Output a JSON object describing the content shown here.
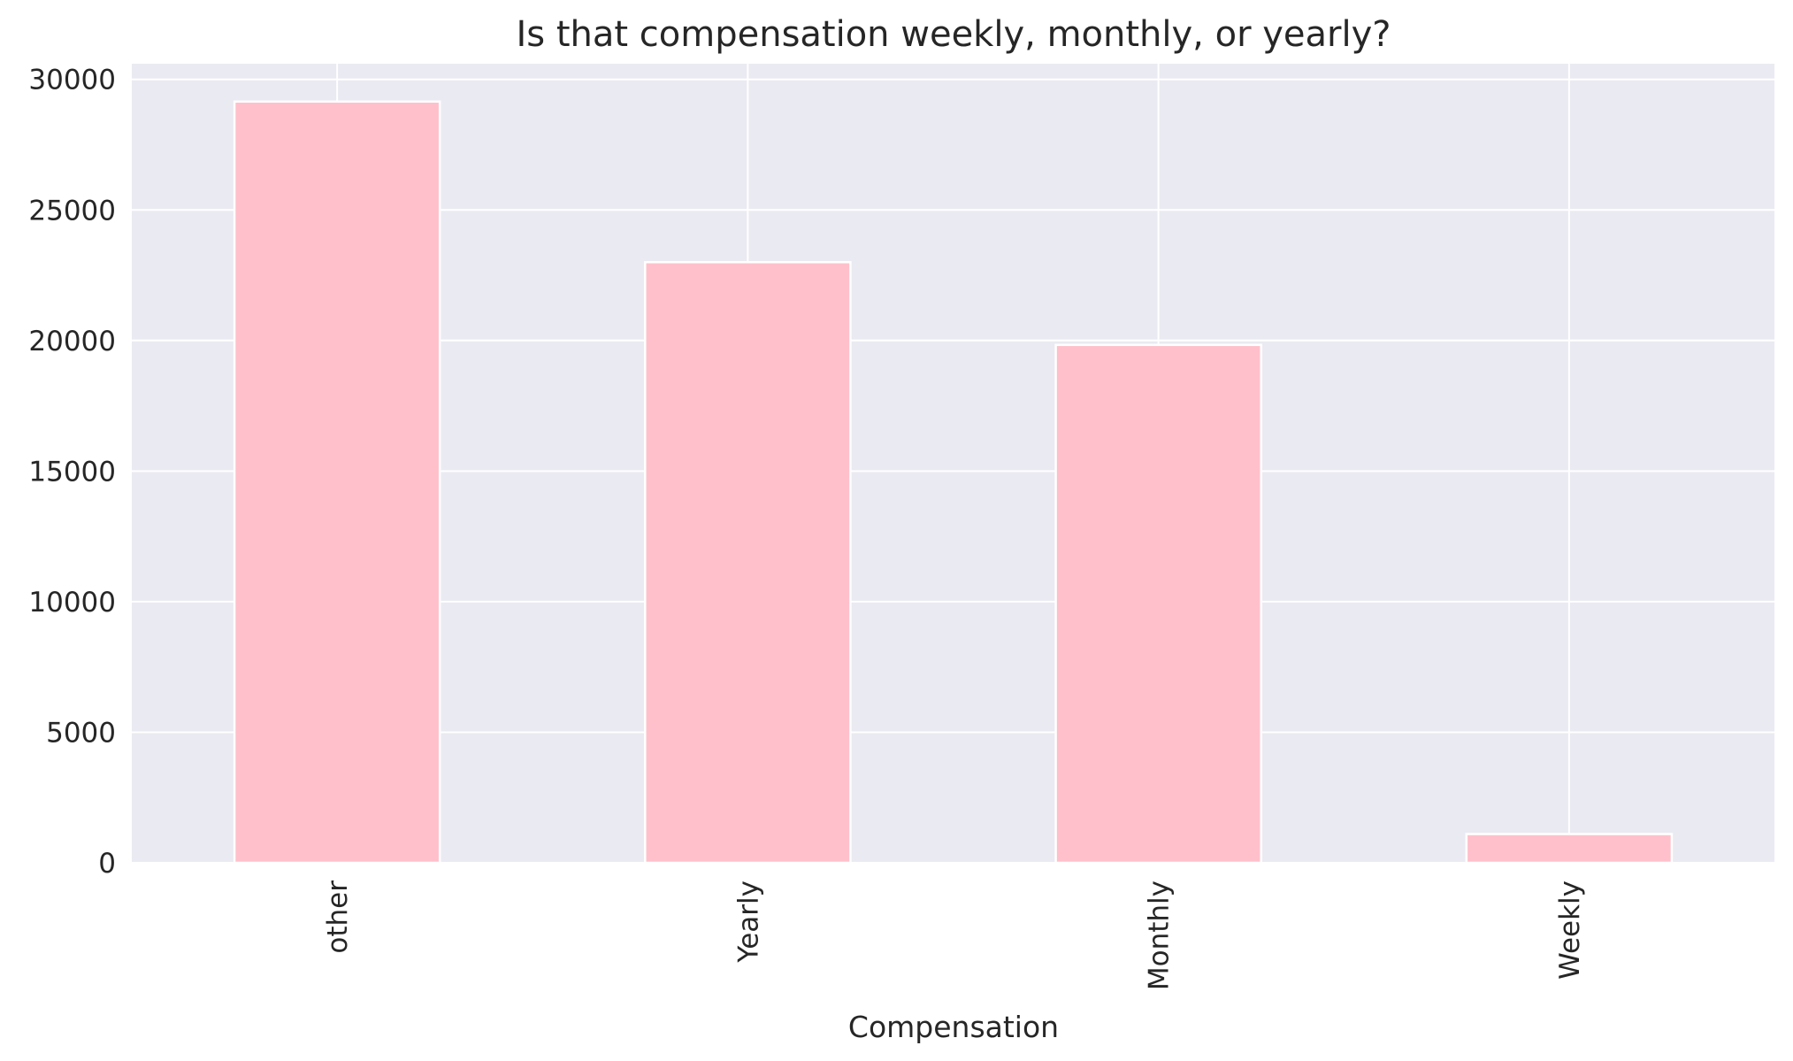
{
  "chart_data": {
    "type": "bar",
    "title": "Is that compensation weekly, monthly, or yearly?",
    "xlabel": "Compensation",
    "ylabel": "",
    "categories": [
      "other",
      "Yearly",
      "Monthly",
      "Weekly"
    ],
    "values": [
      29150,
      23000,
      19830,
      1100
    ],
    "ylim": [
      0,
      30600
    ],
    "yticks": [
      0,
      5000,
      10000,
      15000,
      20000,
      25000,
      30000
    ],
    "ytick_labels": [
      "0",
      "5000",
      "10000",
      "15000",
      "20000",
      "25000",
      "30000"
    ],
    "grid": true,
    "legend": "none",
    "colors": {
      "bar": "#ffc0cb",
      "bar_edge": "#ffffff",
      "plot_background": "#eaeaf2",
      "grid": "#ffffff",
      "text": "#262626"
    }
  }
}
